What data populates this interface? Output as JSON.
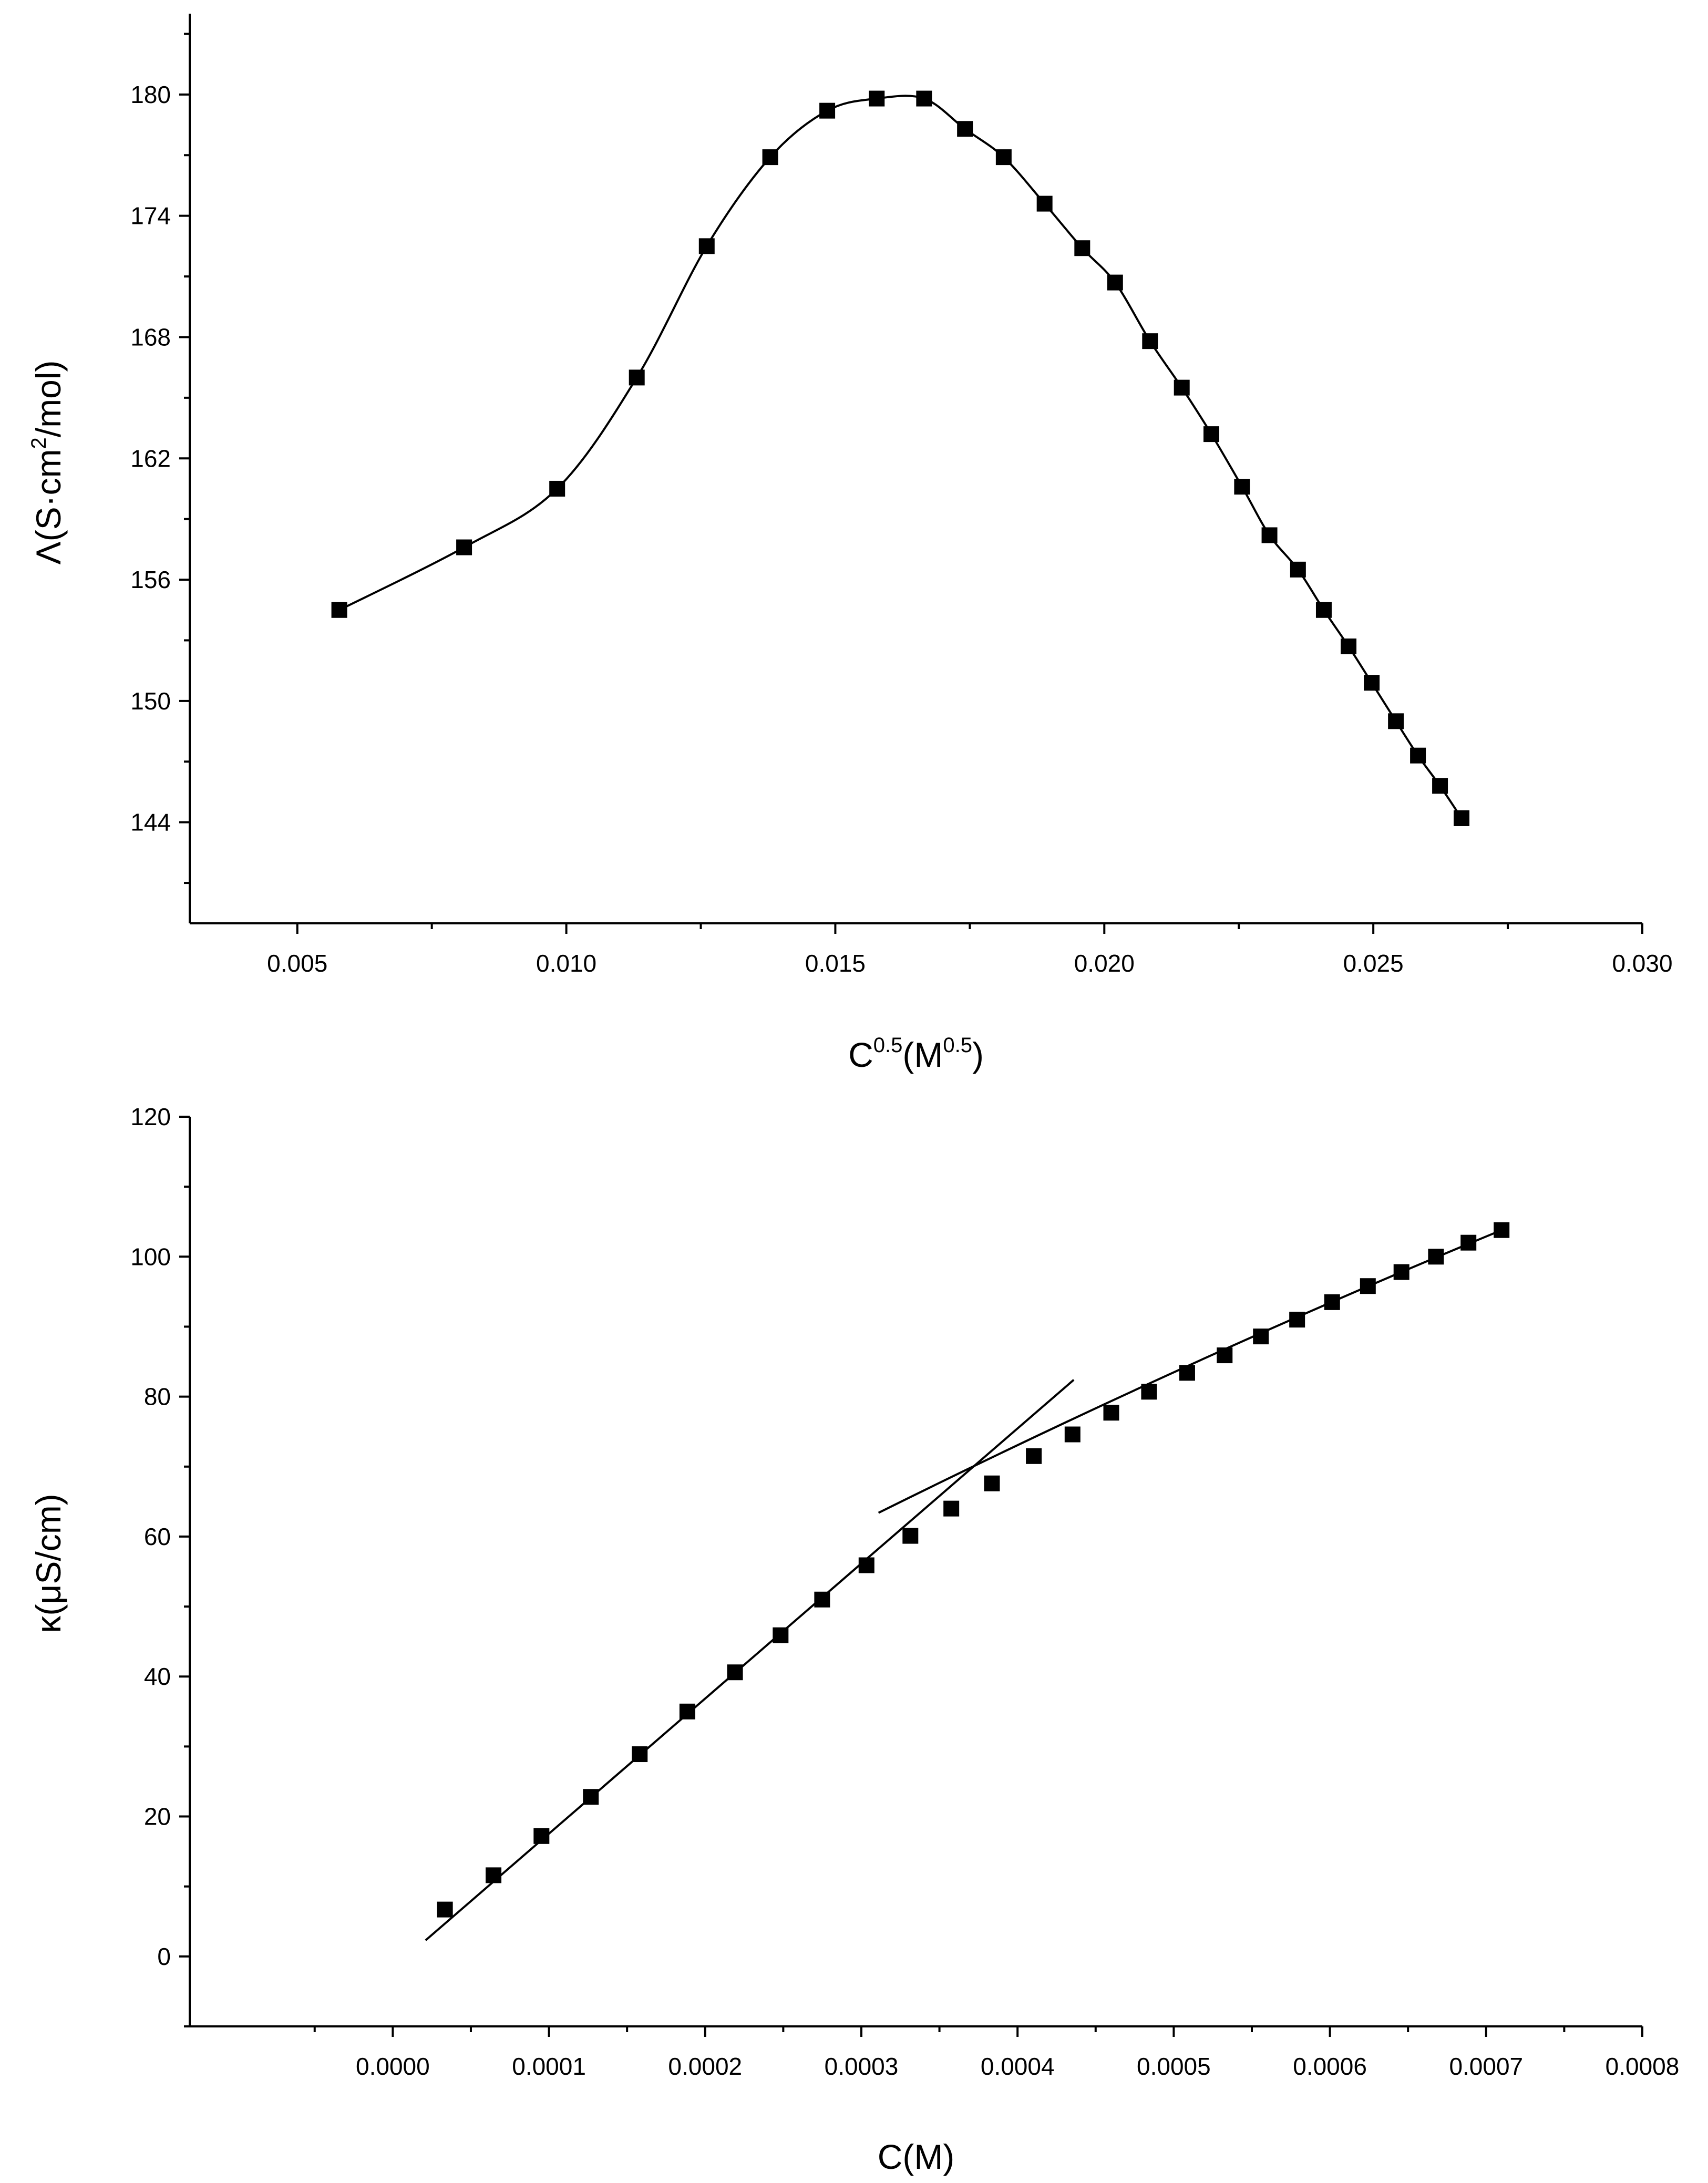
{
  "chart_data": [
    {
      "type": "scatter",
      "xlabel": {
        "base": "C",
        "sup": "0.5",
        "mid": "(M",
        "sup2": "0.5",
        "end": ")"
      },
      "ylabel": {
        "pre": "Λ(S·cm",
        "sup": "2",
        "post": "/mol)"
      },
      "xlim": [
        0.003,
        0.03
      ],
      "ylim": [
        139,
        184
      ],
      "xticks": [
        "0.005",
        "0.010",
        "0.015",
        "0.020",
        "0.025",
        "0.030"
      ],
      "yticks": [
        "144",
        "150",
        "156",
        "162",
        "168",
        "174",
        "180"
      ],
      "series": [
        {
          "marker": "square",
          "x": [
            0.00578,
            0.0081,
            0.00983,
            0.01131,
            0.01261,
            0.01379,
            0.01485,
            0.01577,
            0.01665,
            0.01741,
            0.01813,
            0.01889,
            0.01959,
            0.0202,
            0.02085,
            0.02144,
            0.02199,
            0.02256,
            0.02307,
            0.0236,
            0.02408,
            0.02454,
            0.02497,
            0.02542,
            0.02583,
            0.02624,
            0.02664
          ],
          "y": [
            154.5,
            157.6,
            160.5,
            166.0,
            172.5,
            176.9,
            179.2,
            179.8,
            179.8,
            178.3,
            176.9,
            174.6,
            172.4,
            170.7,
            167.8,
            165.5,
            163.2,
            160.6,
            158.2,
            156.5,
            154.5,
            152.7,
            150.9,
            149.0,
            147.3,
            145.8,
            144.2
          ]
        }
      ],
      "fit": "smooth spline through points"
    },
    {
      "type": "scatter",
      "xlabel": "C(M)",
      "ylabel": "κ(μS/cm)",
      "xlim": [
        -0.00013,
        0.0008
      ],
      "ylim": [
        -10,
        120
      ],
      "xticks": [
        "0.0000",
        "0.0001",
        "0.0002",
        "0.0003",
        "0.0004",
        "0.0005",
        "0.0006",
        "0.0007",
        "0.0008"
      ],
      "yticks": [
        "0",
        "20",
        "40",
        "60",
        "80",
        "100",
        "120"
      ],
      "series": [
        {
          "marker": "square",
          "x": [
            3.34e-05,
            6.45e-05,
            9.52e-05,
            0.0001268,
            0.0001581,
            0.0001886,
            0.0002191,
            0.0002483,
            0.0002749,
            0.0003033,
            0.0003314,
            0.0003576,
            0.0003836,
            0.0004104,
            0.0004352,
            0.00046,
            0.0004842,
            0.0005086,
            0.0005326,
            0.0005558,
            0.000579,
            0.0006014,
            0.0006243,
            0.0006458,
            0.0006679,
            0.0006887,
            0.0007099
          ],
          "y": [
            6.7,
            11.6,
            17.2,
            22.8,
            28.9,
            35.0,
            40.6,
            45.9,
            51.0,
            55.9,
            60.1,
            64.0,
            67.6,
            71.5,
            74.6,
            77.7,
            80.7,
            83.4,
            85.9,
            88.6,
            91.0,
            93.5,
            95.8,
            97.8,
            100.0,
            102.0,
            103.8
          ]
        }
      ],
      "fit_lines": [
        {
          "x": [
            2.1e-05,
            0.000436
          ],
          "y": [
            2.3,
            82.4
          ]
        },
        {
          "x": [
            0.000311,
            0.00071
          ],
          "y": [
            63.4,
            103.8
          ],
          "curve": true
        }
      ]
    }
  ]
}
